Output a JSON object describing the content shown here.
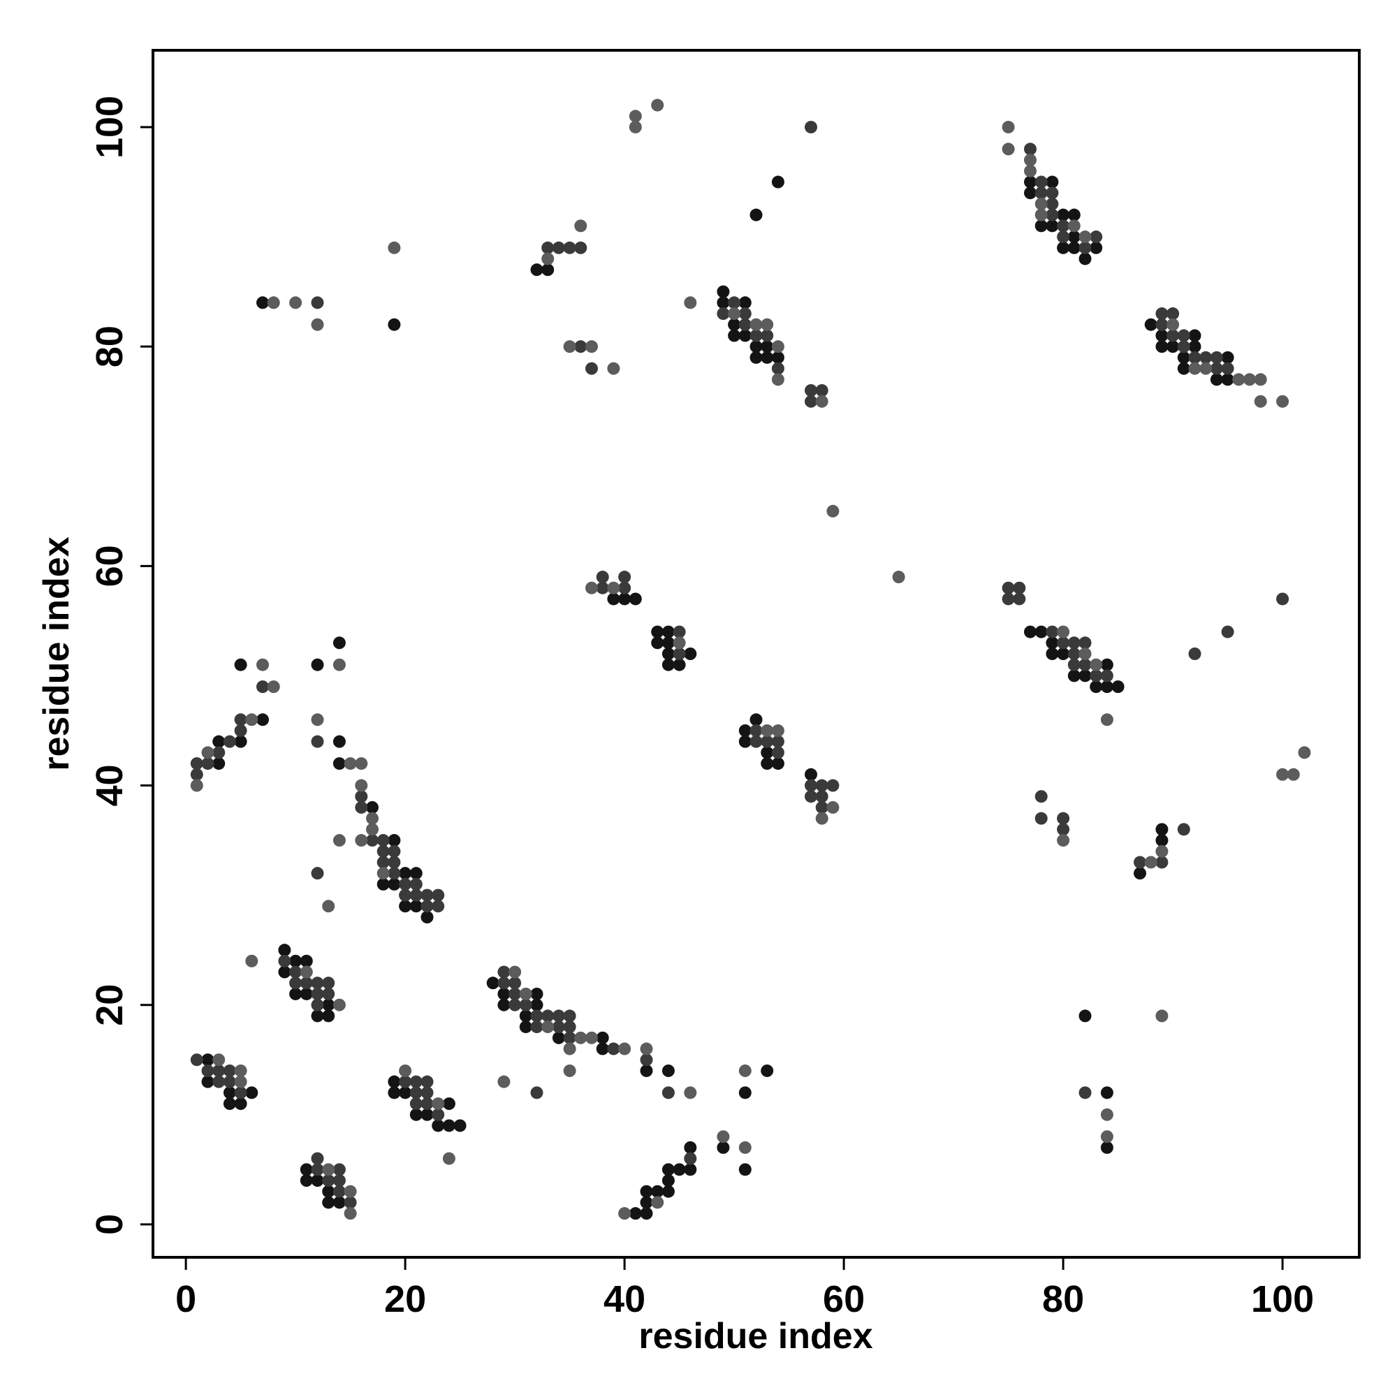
{
  "chart_data": {
    "type": "scatter",
    "x_label": "residue index",
    "y_label": "residue index",
    "xlim": [
      -3,
      107
    ],
    "ylim": [
      -3,
      107
    ],
    "xticks": [
      0,
      20,
      40,
      60,
      80,
      100
    ],
    "yticks": [
      0,
      20,
      40,
      60,
      80,
      100
    ],
    "grid": false,
    "series": [
      {
        "color": "#141414",
        "x": [
          2,
          2,
          4,
          6,
          4,
          5,
          11,
          11,
          12,
          13,
          13,
          14,
          9,
          10,
          11,
          9,
          10,
          11,
          13,
          12,
          13,
          19,
          19,
          20,
          24,
          21,
          22,
          23,
          24,
          25,
          3,
          3,
          5,
          7,
          5,
          14,
          14,
          17,
          19,
          20,
          21,
          18,
          19,
          20,
          21,
          22,
          14,
          12,
          7,
          19,
          32,
          33,
          54,
          52,
          49,
          49,
          51,
          50,
          50,
          51,
          52,
          53,
          52,
          53,
          54,
          39,
          40,
          41,
          43,
          44,
          43,
          44,
          44,
          46,
          44,
          45,
          52,
          51,
          51,
          53,
          53,
          54,
          57,
          28,
          29,
          32,
          29,
          32,
          31,
          31,
          34,
          38,
          38,
          42,
          44,
          53,
          51,
          41,
          42,
          42,
          42,
          43,
          44,
          44,
          44,
          45,
          46,
          46,
          49,
          51,
          77,
          79,
          77,
          80,
          81,
          78,
          79,
          81,
          80,
          81,
          83,
          82,
          88,
          89,
          92,
          89,
          90,
          92,
          91,
          95,
          91,
          94,
          95,
          77,
          78,
          79,
          79,
          80,
          84,
          81,
          82,
          83,
          84,
          85,
          89,
          89,
          87,
          82,
          84,
          84
        ],
        "y": [
          15,
          13,
          12,
          12,
          11,
          11,
          5,
          4,
          4,
          3,
          2,
          2,
          25,
          24,
          24,
          23,
          21,
          21,
          20,
          19,
          19,
          13,
          12,
          12,
          11,
          10,
          10,
          9,
          9,
          9,
          42,
          44,
          44,
          46,
          51,
          44,
          42,
          38,
          35,
          32,
          32,
          31,
          31,
          29,
          29,
          28,
          53,
          51,
          84,
          82,
          87,
          87,
          95,
          92,
          85,
          84,
          84,
          82,
          81,
          81,
          80,
          80,
          79,
          79,
          79,
          57,
          57,
          57,
          54,
          54,
          53,
          53,
          52,
          52,
          51,
          51,
          46,
          45,
          44,
          43,
          42,
          42,
          41,
          22,
          21,
          21,
          20,
          20,
          19,
          18,
          17,
          17,
          16,
          14,
          14,
          14,
          12,
          1,
          1,
          2,
          3,
          3,
          3,
          4,
          5,
          5,
          5,
          7,
          7,
          5,
          95,
          95,
          94,
          92,
          92,
          91,
          91,
          90,
          89,
          89,
          89,
          88,
          82,
          81,
          81,
          80,
          80,
          80,
          79,
          79,
          78,
          77,
          77,
          54,
          54,
          53,
          52,
          52,
          51,
          50,
          50,
          49,
          49,
          49,
          36,
          35,
          32,
          19,
          12,
          7
        ]
      },
      {
        "color": "#3a3a3a",
        "x": [
          1,
          2,
          3,
          4,
          3,
          4,
          5,
          12,
          12,
          14,
          13,
          14,
          14,
          15,
          9,
          10,
          10,
          11,
          12,
          13,
          12,
          13,
          12,
          20,
          21,
          22,
          21,
          22,
          21,
          22,
          23,
          1,
          1,
          2,
          3,
          4,
          5,
          5,
          7,
          12,
          16,
          16,
          17,
          18,
          18,
          19,
          18,
          19,
          19,
          20,
          21,
          20,
          21,
          22,
          23,
          22,
          23,
          12,
          12,
          33,
          34,
          35,
          36,
          36,
          37,
          57,
          50,
          49,
          51,
          51,
          52,
          53,
          54,
          57,
          58,
          57,
          38,
          38,
          40,
          40,
          45,
          45,
          52,
          52,
          53,
          54,
          54,
          57,
          58,
          59,
          57,
          58,
          58,
          29,
          29,
          30,
          30,
          30,
          31,
          32,
          33,
          34,
          35,
          32,
          34,
          35,
          35,
          39,
          42,
          32,
          44,
          46,
          77,
          78,
          78,
          79,
          79,
          79,
          80,
          80,
          83,
          82,
          89,
          89,
          90,
          90,
          91,
          91,
          92,
          93,
          94,
          94,
          95,
          75,
          76,
          75,
          76,
          79,
          80,
          81,
          82,
          81,
          81,
          82,
          83,
          84,
          100,
          92,
          95,
          78,
          78,
          80,
          80,
          91,
          87,
          89,
          82
        ],
        "y": [
          15,
          14,
          14,
          14,
          13,
          13,
          12,
          6,
          5,
          5,
          4,
          4,
          3,
          2,
          24,
          23,
          22,
          22,
          22,
          22,
          21,
          21,
          20,
          13,
          13,
          13,
          12,
          12,
          11,
          11,
          10,
          41,
          42,
          42,
          43,
          44,
          45,
          46,
          49,
          44,
          39,
          38,
          35,
          35,
          34,
          34,
          33,
          33,
          32,
          31,
          31,
          30,
          30,
          30,
          30,
          29,
          29,
          32,
          84,
          89,
          89,
          89,
          89,
          80,
          78,
          100,
          84,
          83,
          83,
          82,
          81,
          81,
          78,
          76,
          76,
          75,
          58,
          59,
          58,
          59,
          54,
          52,
          45,
          44,
          44,
          44,
          43,
          40,
          40,
          40,
          39,
          39,
          38,
          23,
          22,
          22,
          21,
          20,
          20,
          19,
          19,
          19,
          19,
          18,
          18,
          18,
          17,
          16,
          15,
          12,
          12,
          6,
          98,
          95,
          94,
          94,
          93,
          92,
          91,
          90,
          90,
          89,
          82,
          83,
          83,
          81,
          81,
          80,
          79,
          79,
          79,
          78,
          78,
          58,
          58,
          57,
          57,
          54,
          53,
          53,
          53,
          52,
          51,
          51,
          50,
          50,
          57,
          52,
          54,
          39,
          37,
          37,
          36,
          36,
          33,
          33,
          12
        ]
      },
      {
        "color": "#5c5c5c",
        "x": [
          3,
          5,
          5,
          13,
          15,
          15,
          11,
          14,
          6,
          20,
          23,
          24,
          1,
          2,
          6,
          7,
          8,
          12,
          15,
          16,
          16,
          17,
          17,
          18,
          14,
          16,
          13,
          14,
          8,
          10,
          12,
          19,
          33,
          36,
          35,
          37,
          39,
          41,
          41,
          43,
          46,
          50,
          52,
          53,
          54,
          54,
          58,
          59,
          65,
          37,
          39,
          45,
          53,
          54,
          59,
          58,
          30,
          31,
          33,
          36,
          37,
          35,
          40,
          42,
          35,
          29,
          46,
          51,
          40,
          43,
          49,
          51,
          75,
          75,
          77,
          77,
          78,
          78,
          81,
          82,
          90,
          92,
          93,
          96,
          97,
          98,
          98,
          100,
          80,
          82,
          83,
          84,
          100,
          101,
          102,
          80,
          89,
          88,
          89,
          84,
          84
        ],
        "y": [
          15,
          14,
          13,
          5,
          3,
          1,
          23,
          20,
          24,
          14,
          11,
          6,
          40,
          43,
          46,
          51,
          49,
          46,
          42,
          42,
          40,
          37,
          36,
          32,
          35,
          35,
          29,
          51,
          84,
          84,
          82,
          89,
          88,
          91,
          80,
          80,
          78,
          101,
          100,
          102,
          84,
          83,
          82,
          82,
          80,
          77,
          75,
          65,
          59,
          58,
          58,
          53,
          45,
          45,
          38,
          37,
          23,
          21,
          18,
          17,
          17,
          16,
          16,
          16,
          14,
          13,
          12,
          14,
          1,
          2,
          8,
          7,
          100,
          98,
          97,
          96,
          93,
          92,
          91,
          90,
          82,
          78,
          78,
          77,
          77,
          77,
          75,
          75,
          54,
          52,
          51,
          46,
          41,
          41,
          43,
          35,
          34,
          33,
          19,
          10,
          8
        ]
      }
    ]
  }
}
